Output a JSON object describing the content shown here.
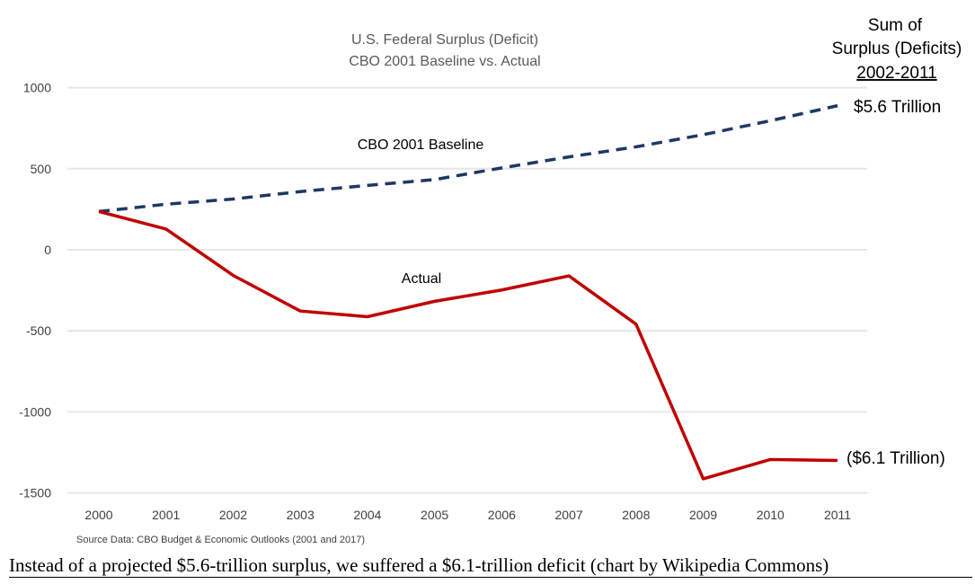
{
  "chart_data": {
    "type": "line",
    "title": "U.S. Federal Surplus (Deficit)",
    "subtitle": "CBO 2001 Baseline vs. Actual",
    "x": [
      2000,
      2001,
      2002,
      2003,
      2004,
      2005,
      2006,
      2007,
      2008,
      2009,
      2010,
      2011
    ],
    "ylim": [
      -1500,
      1000
    ],
    "yticks": [
      1000,
      500,
      0,
      -500,
      -1000,
      -1500
    ],
    "grid": true,
    "series": [
      {
        "name": "CBO 2001 Baseline",
        "color": "#1f3864",
        "style": "dashed",
        "values": [
          236,
          281,
          313,
          359,
          397,
          433,
          505,
          573,
          635,
          710,
          796,
          889
        ]
      },
      {
        "name": "Actual",
        "color": "#c00000",
        "style": "solid",
        "values": [
          236,
          128,
          -158,
          -378,
          -413,
          -318,
          -248,
          -161,
          -459,
          -1413,
          -1294,
          -1300
        ]
      }
    ],
    "annotations": {
      "sum_heading_1": "Sum of",
      "sum_heading_2": "Surplus (Deficits)",
      "sum_heading_3": "2002-2011",
      "baseline_total": "$5.6 Trillion",
      "actual_total": "($6.1 Trillion)"
    },
    "source": "Source Data:  CBO Budget & Economic Outlooks (2001 and 2017)"
  },
  "caption": "Instead of a projected $5.6-trillion surplus, we suffered a $6.1-trillion deficit (chart by Wikipedia Commons)"
}
